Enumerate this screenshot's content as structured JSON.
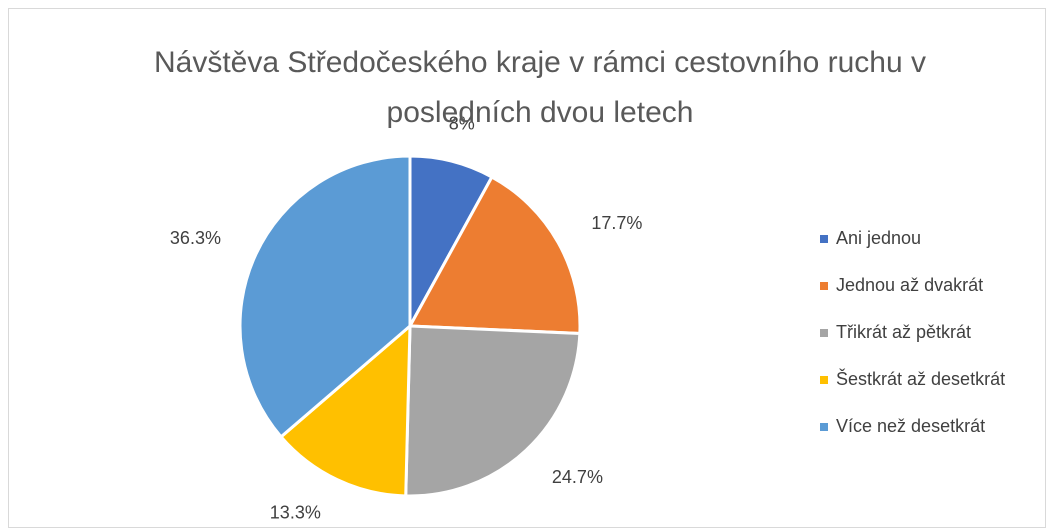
{
  "chart_data": {
    "type": "pie",
    "title": "Návštěva Středočeského kraje v rámci cestovního ruchu v posledních dvou letech",
    "categories": [
      "Ani jednou",
      "Jednou až dvakrát",
      "Třikrát až pětkrát",
      "Šestkrát až desetkrát",
      "Více než desetkrát"
    ],
    "values": [
      8,
      17.7,
      24.7,
      13.3,
      36.3
    ],
    "value_labels": [
      "8%",
      "17.7%",
      "24.7%",
      "13.3%",
      "36.3%"
    ],
    "colors": [
      "#4472c4",
      "#ed7d31",
      "#a5a5a5",
      "#ffc000",
      "#5b9bd5"
    ],
    "legend": "right"
  }
}
